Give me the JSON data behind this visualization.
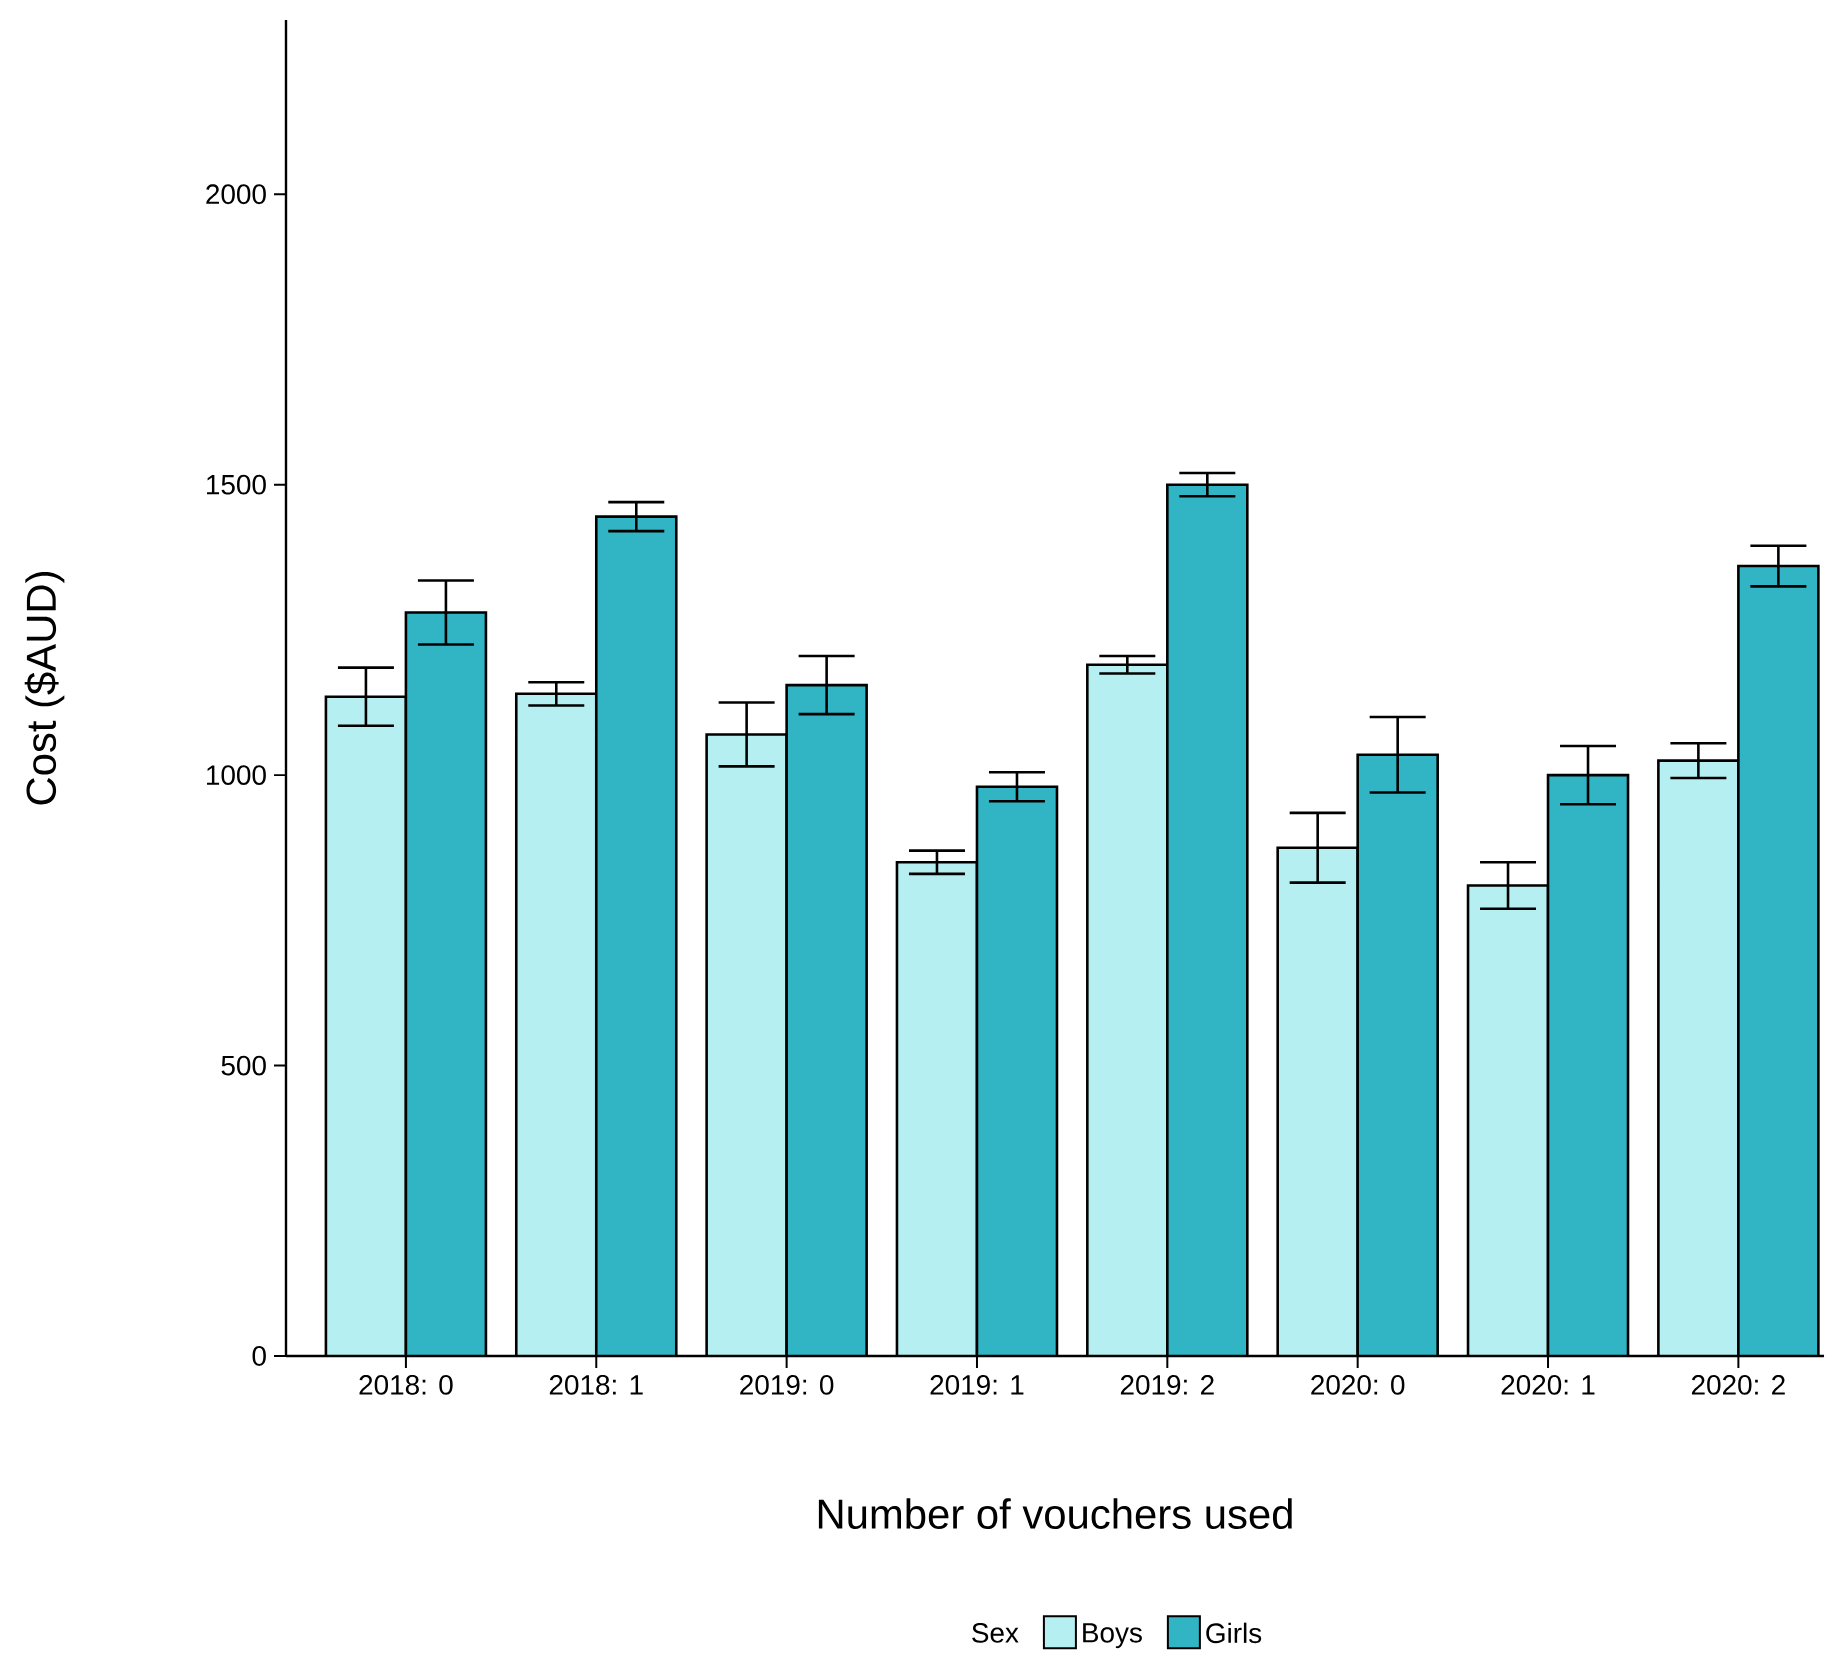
{
  "chart_data": {
    "type": "bar",
    "xlabel": "Number of vouchers used",
    "ylabel": "Cost ($AUD)",
    "legend_title": "Sex",
    "legend": "bottom",
    "categories": [
      "2018: 0",
      "2018: 1",
      "2019: 0",
      "2019: 1",
      "2019: 2",
      "2020: 0",
      "2020: 1",
      "2020: 2"
    ],
    "series": [
      {
        "name": "Boys",
        "color": "#b5eff2",
        "values": [
          1135,
          1140,
          1070,
          850,
          1190,
          875,
          810,
          1025
        ],
        "errors": [
          50,
          20,
          55,
          20,
          15,
          60,
          40,
          30
        ]
      },
      {
        "name": "Girls",
        "color": "#31b4c4",
        "values": [
          1280,
          1445,
          1155,
          980,
          1500,
          1035,
          1000,
          1360
        ],
        "errors": [
          55,
          25,
          50,
          25,
          20,
          65,
          50,
          35
        ]
      }
    ],
    "ylim": [
      0,
      2300
    ],
    "yticks": [
      0,
      500,
      1000,
      1500,
      2000
    ]
  }
}
